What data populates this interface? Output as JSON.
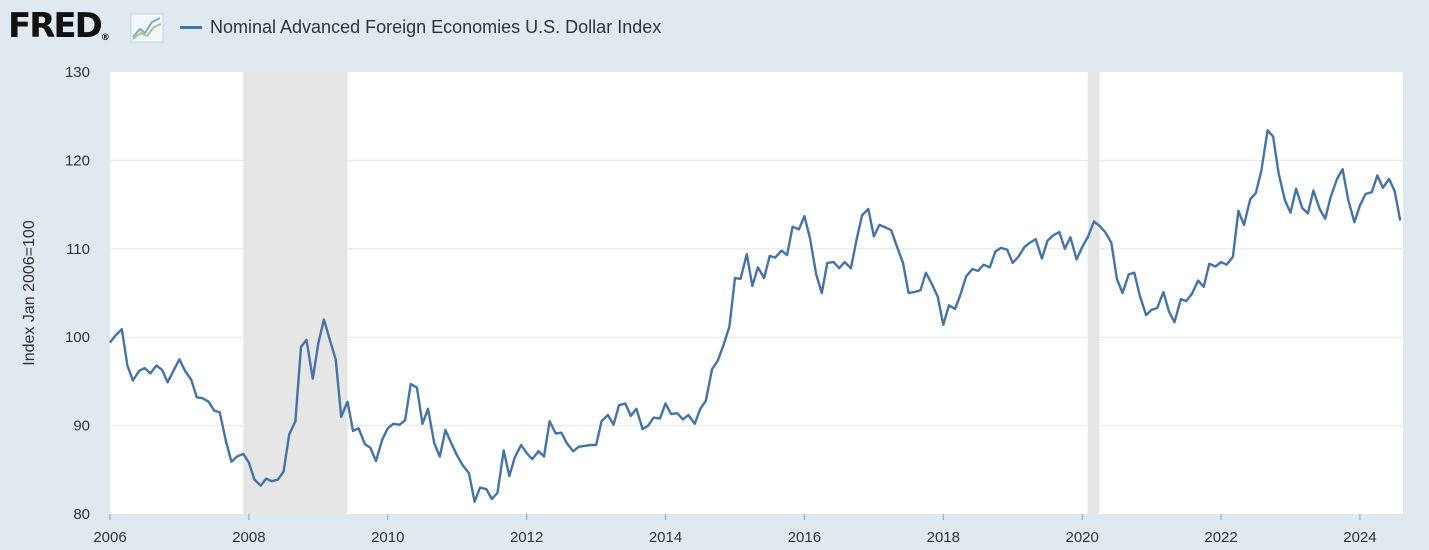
{
  "header": {
    "logo_text": "FRED",
    "logo_mark": "®",
    "logo_icon": "line-chart-icon",
    "legend_label": "Nominal Advanced Foreign Economies U.S. Dollar Index"
  },
  "colors": {
    "series": "#4572a7",
    "recession": "#e6e6e6",
    "grid": "#e6e6e6",
    "background": "#e1e9f0",
    "plot": "#ffffff"
  },
  "chart_data": {
    "type": "line",
    "ylabel": "Index Jan 2006=100",
    "xlabel": "",
    "xlim": [
      2006.0,
      2024.62
    ],
    "ylim": [
      80,
      130
    ],
    "y_ticks": [
      80,
      90,
      100,
      110,
      120,
      130
    ],
    "x_ticks": [
      2006,
      2008,
      2010,
      2012,
      2014,
      2016,
      2018,
      2020,
      2022,
      2024
    ],
    "grid": true,
    "legend": "top-left",
    "recessions": [
      [
        2007.92,
        2009.42
      ],
      [
        2020.08,
        2020.25
      ]
    ],
    "series": [
      {
        "name": "Nominal Advanced Foreign Economies U.S. Dollar Index",
        "x": [
          2006.0,
          2006.08,
          2006.17,
          2006.25,
          2006.33,
          2006.42,
          2006.5,
          2006.58,
          2006.67,
          2006.75,
          2006.83,
          2006.92,
          2007.0,
          2007.08,
          2007.17,
          2007.25,
          2007.33,
          2007.42,
          2007.5,
          2007.58,
          2007.67,
          2007.75,
          2007.83,
          2007.92,
          2008.0,
          2008.08,
          2008.17,
          2008.25,
          2008.33,
          2008.42,
          2008.5,
          2008.58,
          2008.67,
          2008.75,
          2008.83,
          2008.92,
          2009.0,
          2009.08,
          2009.17,
          2009.25,
          2009.33,
          2009.42,
          2009.5,
          2009.58,
          2009.67,
          2009.75,
          2009.83,
          2009.92,
          2010.0,
          2010.08,
          2010.17,
          2010.25,
          2010.33,
          2010.42,
          2010.5,
          2010.58,
          2010.67,
          2010.75,
          2010.83,
          2010.92,
          2011.0,
          2011.08,
          2011.17,
          2011.25,
          2011.33,
          2011.42,
          2011.5,
          2011.58,
          2011.67,
          2011.75,
          2011.83,
          2011.92,
          2012.0,
          2012.08,
          2012.17,
          2012.25,
          2012.33,
          2012.42,
          2012.5,
          2012.58,
          2012.67,
          2012.75,
          2012.83,
          2012.92,
          2013.0,
          2013.08,
          2013.17,
          2013.25,
          2013.33,
          2013.42,
          2013.5,
          2013.58,
          2013.67,
          2013.75,
          2013.83,
          2013.92,
          2014.0,
          2014.08,
          2014.17,
          2014.25,
          2014.33,
          2014.42,
          2014.5,
          2014.58,
          2014.67,
          2014.75,
          2014.83,
          2014.92,
          2015.0,
          2015.08,
          2015.17,
          2015.25,
          2015.33,
          2015.42,
          2015.5,
          2015.58,
          2015.67,
          2015.75,
          2015.83,
          2015.92,
          2016.0,
          2016.08,
          2016.17,
          2016.25,
          2016.33,
          2016.42,
          2016.5,
          2016.58,
          2016.67,
          2016.75,
          2016.83,
          2016.92,
          2017.0,
          2017.08,
          2017.17,
          2017.25,
          2017.33,
          2017.42,
          2017.5,
          2017.58,
          2017.67,
          2017.75,
          2017.83,
          2017.92,
          2018.0,
          2018.08,
          2018.17,
          2018.25,
          2018.33,
          2018.42,
          2018.5,
          2018.58,
          2018.67,
          2018.75,
          2018.83,
          2018.92,
          2019.0,
          2019.08,
          2019.17,
          2019.25,
          2019.33,
          2019.42,
          2019.5,
          2019.58,
          2019.67,
          2019.75,
          2019.83,
          2019.92,
          2020.0,
          2020.08,
          2020.17,
          2020.25,
          2020.33,
          2020.42,
          2020.5,
          2020.58,
          2020.67,
          2020.75,
          2020.83,
          2020.92,
          2021.0,
          2021.08,
          2021.17,
          2021.25,
          2021.33,
          2021.42,
          2021.5,
          2021.58,
          2021.67,
          2021.75,
          2021.83,
          2021.92,
          2022.0,
          2022.08,
          2022.17,
          2022.25,
          2022.33,
          2022.42,
          2022.5,
          2022.58,
          2022.67,
          2022.75,
          2022.83,
          2022.92,
          2023.0,
          2023.08,
          2023.17,
          2023.25,
          2023.33,
          2023.42,
          2023.5,
          2023.58,
          2023.67,
          2023.75,
          2023.83,
          2023.92,
          2024.0,
          2024.08,
          2024.17,
          2024.25,
          2024.33,
          2024.42,
          2024.5,
          2024.58
        ],
        "values": [
          99.4,
          100.2,
          100.9,
          96.8,
          95.1,
          96.2,
          96.5,
          95.9,
          96.8,
          96.3,
          94.9,
          96.3,
          97.5,
          96.2,
          95.2,
          93.2,
          93.1,
          92.7,
          91.7,
          91.5,
          88.2,
          85.9,
          86.5,
          86.8,
          85.8,
          83.9,
          83.2,
          84.0,
          83.7,
          83.9,
          84.8,
          89.0,
          90.5,
          98.9,
          99.7,
          95.3,
          99.3,
          102.0,
          99.6,
          97.5,
          91.0,
          92.7,
          89.4,
          89.7,
          87.9,
          87.5,
          86.0,
          88.4,
          89.7,
          90.2,
          90.1,
          90.6,
          94.7,
          94.3,
          90.2,
          91.9,
          88.0,
          86.5,
          89.5,
          87.9,
          86.6,
          85.5,
          84.6,
          81.4,
          83.0,
          82.8,
          81.7,
          82.4,
          87.2,
          84.3,
          86.4,
          87.8,
          86.9,
          86.2,
          87.1,
          86.5,
          90.5,
          89.1,
          89.2,
          88.0,
          87.1,
          87.6,
          87.7,
          87.8,
          87.8,
          90.5,
          91.2,
          90.1,
          92.3,
          92.5,
          91.1,
          91.9,
          89.6,
          90.0,
          90.9,
          90.8,
          92.5,
          91.3,
          91.4,
          90.7,
          91.2,
          90.2,
          91.9,
          92.8,
          96.4,
          97.3,
          99.0,
          101.2,
          106.7,
          106.6,
          109.4,
          105.8,
          107.9,
          106.7,
          109.2,
          109.0,
          109.8,
          109.3,
          112.5,
          112.2,
          113.7,
          111.2,
          107.1,
          105.0,
          108.4,
          108.5,
          107.8,
          108.5,
          107.8,
          111.0,
          113.8,
          114.5,
          111.4,
          112.7,
          112.4,
          112.1,
          110.3,
          108.4,
          105.0,
          105.1,
          105.3,
          107.3,
          106.1,
          104.6,
          101.4,
          103.6,
          103.2,
          104.9,
          106.9,
          107.7,
          107.5,
          108.2,
          107.9,
          109.7,
          110.1,
          109.9,
          108.4,
          109.1,
          110.2,
          110.7,
          111.1,
          108.9,
          110.9,
          111.5,
          111.9,
          110.0,
          111.3,
          108.8,
          110.2,
          111.3,
          113.1,
          112.6,
          111.9,
          110.7,
          106.6,
          105.0,
          107.1,
          107.3,
          104.7,
          102.5,
          103.1,
          103.3,
          105.1,
          102.9,
          101.7,
          104.3,
          104.1,
          104.9,
          106.4,
          105.7,
          108.3,
          108.0,
          108.5,
          108.2,
          109.1,
          114.3,
          112.7,
          115.6,
          116.3,
          118.8,
          123.4,
          122.7,
          118.5,
          115.5,
          114.1,
          116.8,
          114.6,
          114.0,
          116.6,
          114.5,
          113.4,
          115.9,
          117.9,
          119.0,
          115.6,
          113.0,
          114.9,
          116.2,
          116.4,
          118.3,
          116.9,
          117.9,
          116.5,
          113.2
        ]
      }
    ]
  }
}
